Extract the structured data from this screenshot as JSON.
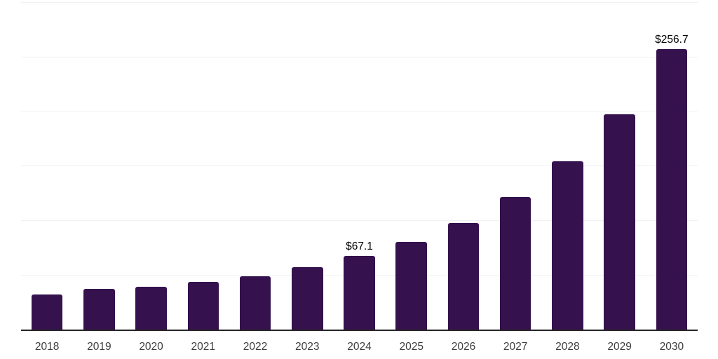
{
  "chart_data": {
    "type": "bar",
    "title": "",
    "xlabel": "",
    "ylabel": "",
    "categories": [
      "2018",
      "2019",
      "2020",
      "2021",
      "2022",
      "2023",
      "2024",
      "2025",
      "2026",
      "2027",
      "2028",
      "2029",
      "2030"
    ],
    "values": [
      32.1,
      37.3,
      39.2,
      43.6,
      48.9,
      57.4,
      67.1,
      80.2,
      97.6,
      121.6,
      154.0,
      197.1,
      256.7
    ],
    "value_labels": [
      "",
      "",
      "",
      "",
      "",
      "",
      "$67.1",
      "",
      "",
      "",
      "",
      "",
      "$256.7"
    ],
    "ylim": [
      0,
      300
    ],
    "grid_step": 50,
    "grid": true,
    "legend": false,
    "y_tick_labels_visible": false,
    "colors": {
      "bar": "#35124E",
      "axis_line": "#262626",
      "gridline": "#F1F1F3",
      "tick_label": "#3D3D3D",
      "value_label": "#000000",
      "background": "#FFFFFF"
    }
  }
}
